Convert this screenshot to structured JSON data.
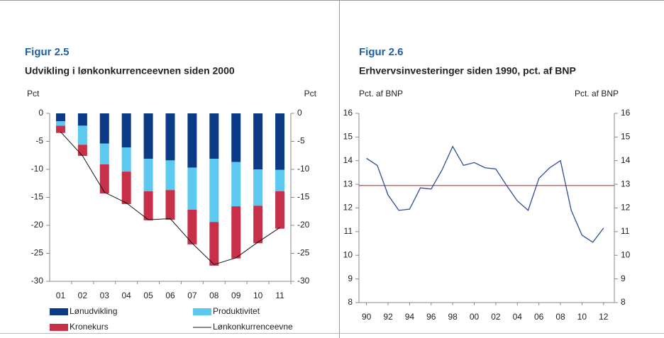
{
  "chart_data": [
    {
      "type": "bar",
      "figure_label": "Figur 2.5",
      "title": "Udvikling i lønkonkurrenceevnen siden 2000",
      "ylabel": "Pct",
      "y2label": "Pct",
      "stacked": true,
      "categories": [
        "01",
        "02",
        "03",
        "04",
        "05",
        "06",
        "07",
        "08",
        "09",
        "10",
        "11"
      ],
      "series": [
        {
          "name": "Lønudvikling",
          "color": "#0b3a86",
          "values": [
            -1.4,
            -2.2,
            -5.4,
            -6.1,
            -8.1,
            -8.4,
            -9.7,
            -8.1,
            -8.7,
            -10.0,
            -10.1
          ]
        },
        {
          "name": "Produktivitet",
          "color": "#5ccaf0",
          "values": [
            -0.8,
            -3.4,
            -3.7,
            -4.3,
            -5.8,
            -5.3,
            -7.5,
            -11.3,
            -7.9,
            -6.5,
            -3.8
          ]
        },
        {
          "name": "Kronekurs",
          "color": "#c8304a",
          "values": [
            -1.3,
            -2.0,
            -5.2,
            -5.8,
            -5.2,
            -5.3,
            -6.2,
            -7.8,
            -9.3,
            -6.7,
            -6.7
          ]
        },
        {
          "name": "Lønkonkurrenceevne",
          "color": "#111111",
          "series_type": "line",
          "values": [
            -3.3,
            -7.6,
            -14.1,
            -16.0,
            -19.0,
            -18.8,
            -23.2,
            -27.0,
            -25.8,
            -23.0,
            -20.4
          ]
        }
      ],
      "ylim": [
        -30,
        0
      ],
      "yticks": [
        0,
        -5,
        -10,
        -15,
        -20,
        -25,
        -30
      ],
      "y2lim": [
        -30,
        0
      ],
      "y2ticks": [
        0,
        -5,
        -10,
        -15,
        -20,
        -25,
        -30
      ]
    },
    {
      "type": "line",
      "figure_label": "Figur 2.6",
      "title": "Erhvervsinvesteringer siden 1990, pct. af BNP",
      "ylabel": "Pct. af BNP",
      "y2label": "Pct. af BNP",
      "x": [
        1990,
        1991,
        1992,
        1993,
        1994,
        1995,
        1996,
        1997,
        1998,
        1999,
        2000,
        2001,
        2002,
        2003,
        2004,
        2005,
        2006,
        2007,
        2008,
        2009,
        2010,
        2011,
        2012
      ],
      "series": [
        {
          "color": "#2b4c9b",
          "values": [
            14.1,
            13.8,
            12.55,
            11.9,
            11.95,
            12.85,
            12.8,
            13.6,
            14.6,
            13.8,
            13.92,
            13.7,
            13.65,
            12.95,
            12.3,
            11.9,
            13.25,
            13.7,
            14.0,
            11.9,
            10.85,
            10.55,
            11.15
          ]
        }
      ],
      "reference_line": {
        "value": 12.95,
        "color": "#c0302e"
      },
      "xlim": [
        1989.3,
        2013
      ],
      "xticks": [
        {
          "value": 1990,
          "label": "90"
        },
        {
          "value": 1992,
          "label": "92"
        },
        {
          "value": 1994,
          "label": "94"
        },
        {
          "value": 1996,
          "label": "96"
        },
        {
          "value": 1998,
          "label": "98"
        },
        {
          "value": 2000,
          "label": "00"
        },
        {
          "value": 2002,
          "label": "02"
        },
        {
          "value": 2004,
          "label": "04"
        },
        {
          "value": 2006,
          "label": "06"
        },
        {
          "value": 2008,
          "label": "08"
        },
        {
          "value": 2010,
          "label": "10"
        },
        {
          "value": 2012,
          "label": "12"
        }
      ],
      "ylim": [
        8,
        16
      ],
      "yticks": [
        8,
        9,
        10,
        11,
        12,
        13,
        14,
        15,
        16
      ],
      "y2lim": [
        8,
        16
      ],
      "y2ticks": [
        8,
        9,
        10,
        11,
        12,
        13,
        14,
        15,
        16
      ]
    }
  ]
}
